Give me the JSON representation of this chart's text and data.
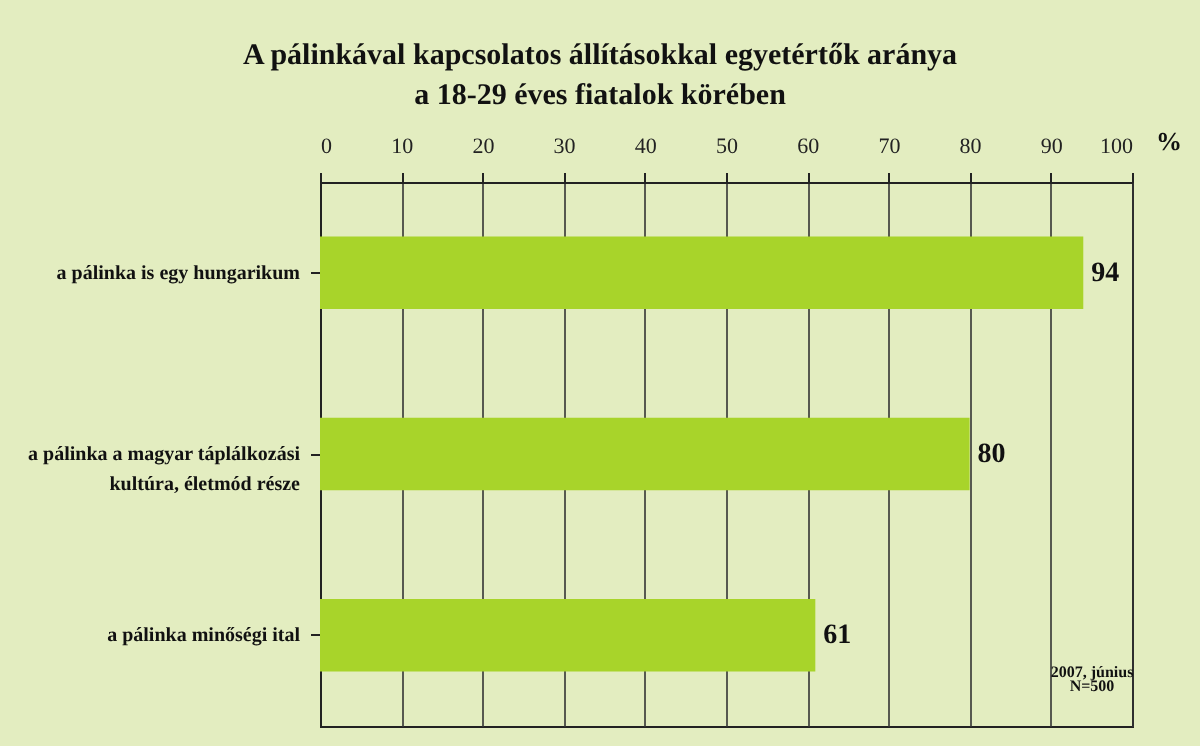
{
  "chart_data": {
    "type": "bar",
    "orientation": "horizontal",
    "title": [
      "A pálinkával kapcsolatos állításokkal egyetértők aránya",
      "a 18-29 éves fiatalok körében"
    ],
    "xlabel": "%",
    "categories": [
      "a pálinka is egy hungarikum",
      "a pálinka a magyar táplálkozási kultúra, életmód része",
      "a pálinka minőségi ital"
    ],
    "values": [
      94,
      80,
      61
    ],
    "color": "#a8d42a",
    "xlim": [
      0,
      100
    ],
    "xticks": [
      0,
      10,
      20,
      30,
      40,
      50,
      60,
      70,
      80,
      90,
      100
    ],
    "grid": "x",
    "data_labels": true,
    "annotations": [
      "2007, június",
      "N=500"
    ]
  }
}
